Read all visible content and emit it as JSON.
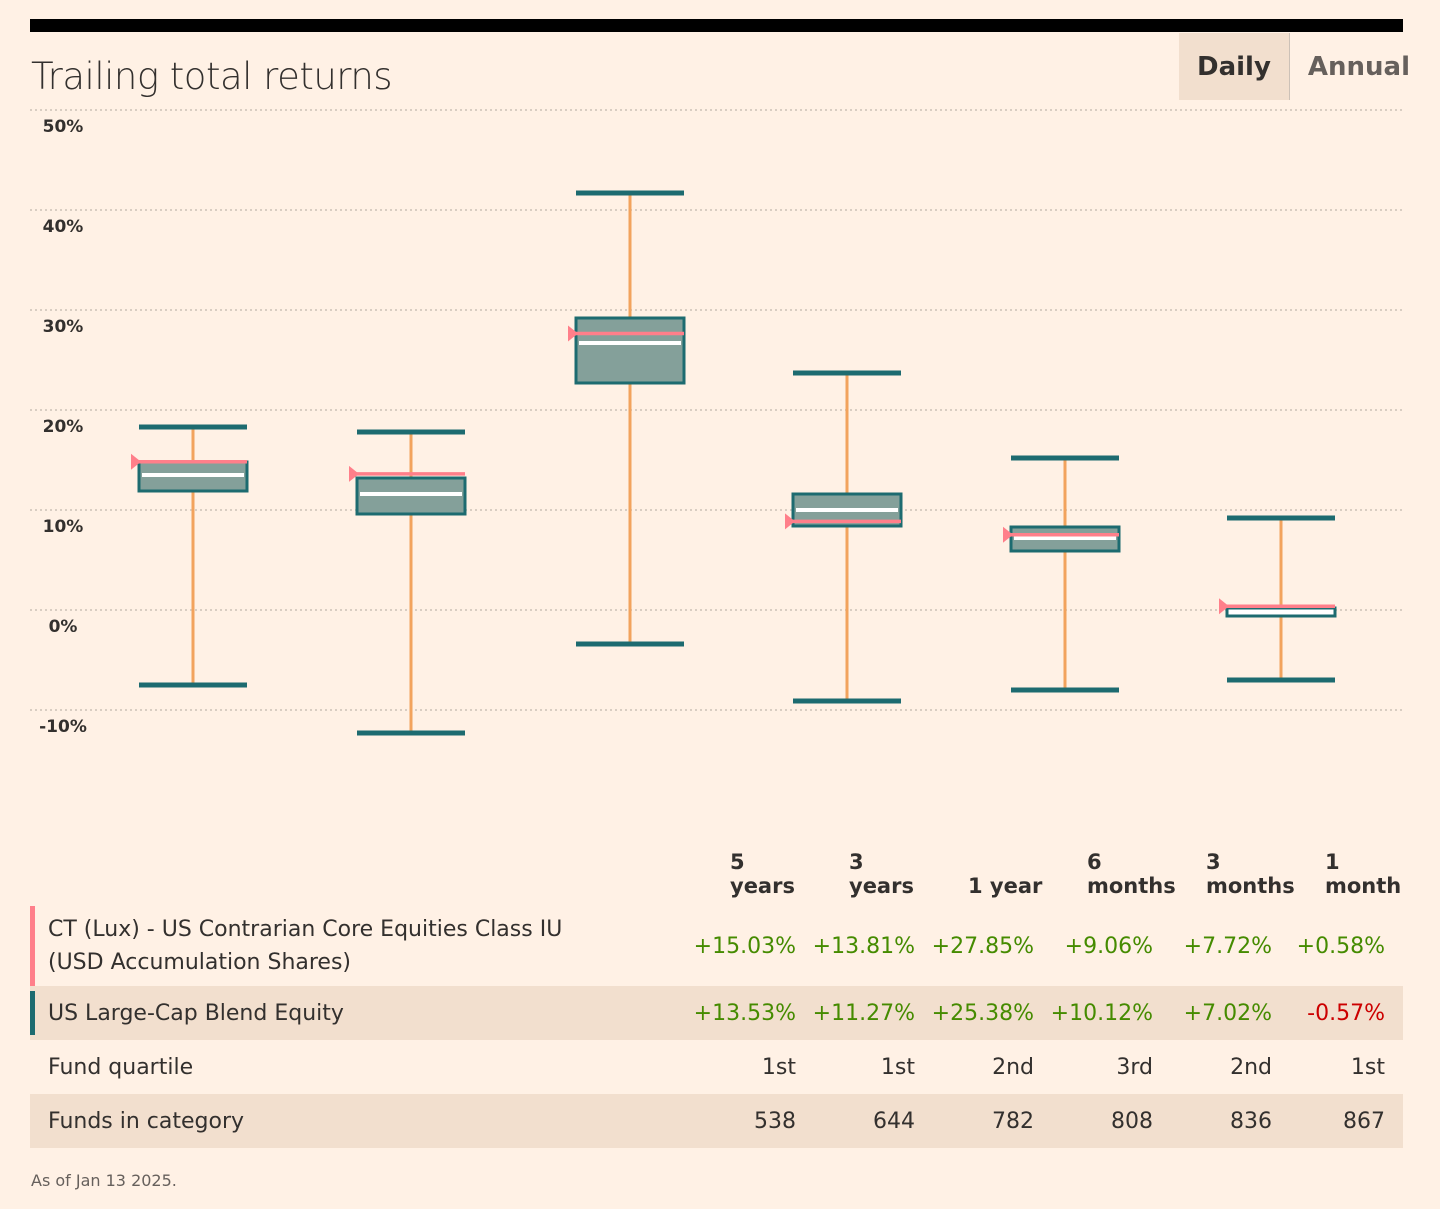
{
  "title": "Trailing total returns",
  "tabs": [
    {
      "label": "Daily",
      "active": true
    },
    {
      "label": "Annual",
      "active": false
    }
  ],
  "colors": {
    "box": "#84a09a",
    "box_border": "#1d6b70",
    "whisker": "#f2a35d",
    "fund": "#ff7f8a",
    "median": "#ffffff",
    "positive": "#458b00",
    "negative": "#cc0000"
  },
  "chart_data": {
    "type": "box",
    "ylim": [
      -10,
      50
    ],
    "yticks": [
      "50%",
      "40%",
      "30%",
      "20%",
      "10%",
      "0%",
      "-10%"
    ],
    "ytick_values": [
      50,
      40,
      30,
      20,
      10,
      0,
      -10
    ],
    "grid": true,
    "categories": [
      "5 years",
      "3 years",
      "1 year",
      "6 months",
      "3 months",
      "1 month"
    ],
    "boxes": [
      {
        "max": 18.5,
        "q3": 15.0,
        "median": 13.7,
        "q1": 12.1,
        "min": -7.3,
        "fund": 15.03
      },
      {
        "max": 18.0,
        "q3": 13.4,
        "median": 11.8,
        "q1": 9.8,
        "min": -12.1,
        "fund": 13.81
      },
      {
        "max": 41.9,
        "q3": 29.4,
        "median": 26.9,
        "q1": 22.9,
        "min": -3.2,
        "fund": 27.85
      },
      {
        "max": 23.9,
        "q3": 11.8,
        "median": 10.2,
        "q1": 8.6,
        "min": -8.9,
        "fund": 9.06
      },
      {
        "max": 15.4,
        "q3": 8.5,
        "median": 7.4,
        "q1": 6.1,
        "min": -7.8,
        "fund": 7.72
      },
      {
        "max": 9.4,
        "q3": 0.4,
        "median": 0.1,
        "q1": -0.4,
        "min": -6.8,
        "fund": 0.58
      }
    ]
  },
  "table": {
    "headers": [
      [
        "5 years"
      ],
      [
        "3 years"
      ],
      [
        "1 year"
      ],
      [
        "6",
        "months"
      ],
      [
        "3",
        "months"
      ],
      [
        "1",
        "month"
      ]
    ],
    "rows": [
      {
        "label": "CT (Lux) - US Contrarian Core Equities Class IU (USD Accumulation Shares)",
        "swatch": "#ff7f8a",
        "values": [
          "+15.03%",
          "+13.81%",
          "+27.85%",
          "+9.06%",
          "+7.72%",
          "+0.58%"
        ]
      },
      {
        "label": "US Large-Cap Blend Equity",
        "swatch": "#1d6b70",
        "values": [
          "+13.53%",
          "+11.27%",
          "+25.38%",
          "+10.12%",
          "+7.02%",
          "-0.57%"
        ]
      },
      {
        "label": "Fund quartile",
        "values": [
          "1st",
          "1st",
          "2nd",
          "3rd",
          "2nd",
          "1st"
        ]
      },
      {
        "label": "Funds in category",
        "values": [
          "538",
          "644",
          "782",
          "808",
          "836",
          "867"
        ]
      }
    ]
  },
  "footnote": "As of Jan 13 2025."
}
